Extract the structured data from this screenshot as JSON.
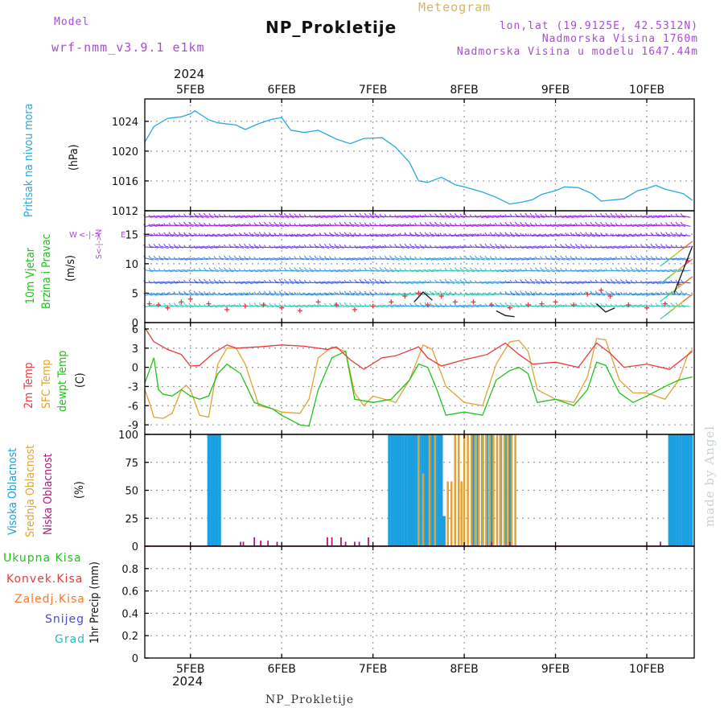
{
  "header": {
    "model_label": "Model",
    "model_name": "wrf-nmm_v3.9.1 e1km",
    "meteogram_label": "Meteogram",
    "station_title": "NP_Prokletije",
    "lonlat": "lon,lat (19.9125E, 42.5312N)",
    "elevation": "Nadmorska Visina 1760m",
    "model_elevation": "Nadmorska Visina u modelu 1647.44m",
    "top_year": "2024",
    "bottom_year": "2024",
    "footer": "NP_Prokletije",
    "credit": "made by Angel"
  },
  "colors": {
    "pressure": "#2aa7e0",
    "temp2m": "#e8393b",
    "sfctemp": "#e3a233",
    "dewpt": "#21c21a",
    "high_cloud": "#1aa0e0",
    "mid_cloud": "#e3a233",
    "low_cloud": "#b0177e",
    "purple": "#a84bd8"
  },
  "panel_labels": {
    "pressure": [
      "Pritisak na nivou mora",
      "(hPa)"
    ],
    "wind": [
      "10m Vjetar",
      "Brzina i Pravac",
      "(m/s)"
    ],
    "wind_compass": [
      "W",
      "<-|->",
      "E",
      "S<-|->N"
    ],
    "temp": [
      "2m Temp",
      "SFC Temp",
      "dewpt Temp",
      "(C)"
    ],
    "cloud": [
      "Visoka Oblacnost",
      "Srednja Oblacnost",
      "Niska Oblacnost",
      "(%)"
    ],
    "precip": [
      "Ukupna Kisa",
      "Konvek.Kisa",
      "Zaledj.Kisa",
      "Snijeg",
      "Grad",
      "1hr Precip (mm)"
    ]
  },
  "chart_data": [
    {
      "type": "line",
      "name": "Pritisak na nivou mora",
      "days": [
        "5FEB",
        "6FEB",
        "7FEB",
        "8FEB",
        "9FEB",
        "10FEB"
      ],
      "ylim": [
        1012,
        1027
      ],
      "yticks": [
        "1024",
        "1020",
        "1016",
        "1012"
      ],
      "series": [
        {
          "name": "Pritisak na nivou mora",
          "x": [
            4.5,
            4.6,
            4.75,
            4.9,
            5.0,
            5.05,
            5.1,
            5.2,
            5.3,
            5.5,
            5.6,
            5.75,
            5.9,
            6.0,
            6.1,
            6.25,
            6.4,
            6.6,
            6.75,
            6.9,
            7.1,
            7.25,
            7.4,
            7.5,
            7.6,
            7.75,
            7.9,
            8.0,
            8.2,
            8.35,
            8.5,
            8.65,
            8.75,
            8.85,
            9.0,
            9.1,
            9.25,
            9.4,
            9.5,
            9.75,
            9.9,
            10.0,
            10.1,
            10.2,
            10.4,
            10.5
          ],
          "values": [
            1021.2,
            1023.3,
            1024.4,
            1024.6,
            1025.0,
            1025.4,
            1025.0,
            1024.2,
            1023.8,
            1023.5,
            1022.9,
            1023.7,
            1024.3,
            1024.5,
            1022.8,
            1022.5,
            1022.8,
            1021.6,
            1021.0,
            1021.7,
            1021.8,
            1020.5,
            1018.5,
            1016.0,
            1015.8,
            1016.5,
            1015.5,
            1015.2,
            1014.5,
            1013.8,
            1012.9,
            1013.2,
            1013.5,
            1014.2,
            1014.7,
            1015.2,
            1015.1,
            1014.3,
            1013.3,
            1013.6,
            1014.7,
            1015.0,
            1015.4,
            1014.9,
            1014.3,
            1013.4
          ]
        }
      ]
    },
    {
      "type": "scatter",
      "name": "10m Vjetar Brzina i Pravac",
      "days": [
        "5FEB",
        "6FEB",
        "7FEB",
        "8FEB",
        "9FEB",
        "10FEB"
      ],
      "ylim": [
        0,
        19
      ],
      "yticks": [
        "15",
        "10",
        "5",
        "0"
      ],
      "series": [
        {
          "name": "Brzina (+)",
          "x": [
            4.55,
            4.65,
            4.75,
            4.9,
            5.0,
            5.2,
            5.4,
            5.6,
            5.8,
            6.0,
            6.2,
            6.4,
            6.6,
            6.8,
            7.0,
            7.2,
            7.35,
            7.5,
            7.6,
            7.75,
            7.9,
            8.1,
            8.3,
            8.5,
            8.7,
            8.85,
            9.0,
            9.2,
            9.35,
            9.5,
            9.6,
            9.8,
            10.0,
            10.2,
            10.35,
            10.45
          ],
          "values": [
            3.2,
            3.0,
            2.5,
            3.5,
            4.0,
            3.2,
            2.2,
            2.8,
            3.0,
            2.5,
            2.0,
            3.5,
            3.0,
            2.2,
            2.8,
            3.5,
            4.5,
            5.0,
            3.0,
            4.5,
            3.5,
            3.5,
            3.0,
            2.5,
            3.0,
            3.2,
            3.5,
            3.0,
            4.8,
            5.5,
            4.5,
            3.0,
            2.5,
            3.2,
            6.5,
            10.5
          ]
        },
        {
          "name": "Brzina (line)",
          "x": [
            7.45,
            7.55,
            7.65,
            8.35,
            8.45,
            8.55,
            9.45,
            9.55,
            9.65,
            10.3,
            10.4,
            10.5
          ],
          "values": [
            3.5,
            5.2,
            3.8,
            2.0,
            1.2,
            1.0,
            3.2,
            1.8,
            2.5,
            5.0,
            9.0,
            13.0
          ]
        }
      ]
    },
    {
      "type": "line",
      "name": "Temp",
      "days": [
        "5FEB",
        "6FEB",
        "7FEB",
        "8FEB",
        "9FEB",
        "10FEB"
      ],
      "ylim": [
        -10.5,
        7
      ],
      "yticks": [
        "6",
        "3",
        "0",
        "-3",
        "-6",
        "-9"
      ],
      "series": [
        {
          "name": "2m Temp",
          "x": [
            4.5,
            4.6,
            4.75,
            4.9,
            5.0,
            5.1,
            5.25,
            5.4,
            5.5,
            5.75,
            6.0,
            6.25,
            6.5,
            6.6,
            6.75,
            6.9,
            7.1,
            7.25,
            7.5,
            7.6,
            7.75,
            8.0,
            8.25,
            8.45,
            8.6,
            8.75,
            9.0,
            9.25,
            9.45,
            9.6,
            9.75,
            10.0,
            10.25,
            10.5
          ],
          "values": [
            6.2,
            4.0,
            2.8,
            2.0,
            0.2,
            0.3,
            2.2,
            3.5,
            3.0,
            3.2,
            3.5,
            3.3,
            2.8,
            3.2,
            1.2,
            -0.3,
            1.5,
            1.8,
            3.2,
            1.5,
            0.2,
            1.2,
            2.0,
            3.8,
            2.0,
            0.5,
            0.8,
            0.0,
            3.8,
            2.2,
            0.0,
            0.5,
            -0.3,
            2.5
          ]
        },
        {
          "name": "SFC Temp",
          "x": [
            4.5,
            4.55,
            4.6,
            4.7,
            4.8,
            4.9,
            4.95,
            5.0,
            5.1,
            5.2,
            5.3,
            5.4,
            5.5,
            5.6,
            5.75,
            5.9,
            6.0,
            6.2,
            6.3,
            6.4,
            6.55,
            6.7,
            6.8,
            6.9,
            7.0,
            7.25,
            7.4,
            7.55,
            7.65,
            7.8,
            8.0,
            8.2,
            8.35,
            8.5,
            8.6,
            8.7,
            8.8,
            9.0,
            9.2,
            9.35,
            9.45,
            9.55,
            9.7,
            9.85,
            10.0,
            10.2,
            10.35,
            10.45,
            10.5
          ],
          "values": [
            -3.5,
            -5.5,
            -7.8,
            -8.0,
            -7.2,
            -3.5,
            -2.8,
            -3.5,
            -7.5,
            -7.8,
            0.5,
            3.0,
            3.0,
            0.5,
            -6.0,
            -6.5,
            -7.0,
            -7.2,
            -5.0,
            1.5,
            3.2,
            2.5,
            -4.0,
            -6.0,
            -4.5,
            -5.5,
            -2.0,
            3.5,
            2.8,
            -3.0,
            -5.5,
            -6.0,
            0.5,
            4.0,
            4.2,
            2.5,
            -3.5,
            -5.0,
            -5.5,
            -1.5,
            4.5,
            4.3,
            -2.0,
            -4.0,
            -4.0,
            -5.0,
            -2.0,
            2.0,
            2.8
          ]
        },
        {
          "name": "dewpt Temp",
          "x": [
            4.5,
            4.6,
            4.65,
            4.7,
            4.8,
            4.9,
            5.0,
            5.1,
            5.2,
            5.3,
            5.4,
            5.55,
            5.7,
            5.9,
            6.0,
            6.2,
            6.3,
            6.4,
            6.55,
            6.7,
            6.8,
            7.0,
            7.2,
            7.4,
            7.5,
            7.6,
            7.7,
            7.8,
            8.0,
            8.2,
            8.35,
            8.5,
            8.6,
            8.7,
            8.8,
            9.0,
            9.2,
            9.35,
            9.45,
            9.55,
            9.7,
            9.85,
            10.0,
            10.2,
            10.35,
            10.5
          ],
          "values": [
            -2.5,
            1.5,
            -3.5,
            -4.2,
            -4.5,
            -3.5,
            -4.5,
            -5.0,
            -4.5,
            -1.0,
            0.5,
            -1.0,
            -5.5,
            -6.5,
            -7.5,
            -9.0,
            -9.2,
            -3.5,
            1.5,
            2.5,
            -5.0,
            -5.5,
            -5.0,
            -2.0,
            0.5,
            0.0,
            -3.5,
            -7.5,
            -7.0,
            -7.5,
            -2.0,
            -0.5,
            0.0,
            -1.0,
            -5.5,
            -5.0,
            -6.0,
            -3.5,
            0.8,
            0.3,
            -4.0,
            -5.5,
            -4.5,
            -3.0,
            -2.0,
            -1.5
          ]
        }
      ]
    },
    {
      "type": "bar",
      "name": "Oblacnost",
      "days": [
        "5FEB",
        "6FEB",
        "7FEB",
        "8FEB",
        "9FEB",
        "10FEB"
      ],
      "ylim": [
        0,
        100
      ],
      "yticks": [
        "100",
        "75",
        "50",
        "25",
        "0"
      ],
      "series": [
        {
          "name": "Visoka Oblacnost",
          "x": [
            5.2,
            5.23,
            5.26,
            5.29,
            5.32,
            7.18,
            7.21,
            7.24,
            7.27,
            7.3,
            7.33,
            7.36,
            7.39,
            7.42,
            7.45,
            7.48,
            7.51,
            7.54,
            7.57,
            7.6,
            7.63,
            7.66,
            7.69,
            7.72,
            7.75,
            7.78,
            8.1,
            8.15,
            8.2,
            8.25,
            8.3,
            8.4,
            8.45,
            8.5,
            10.25,
            10.28,
            10.31,
            10.34,
            10.37,
            10.4,
            10.43,
            10.46,
            10.49
          ],
          "values": [
            100,
            100,
            100,
            100,
            100,
            100,
            100,
            100,
            100,
            100,
            100,
            100,
            100,
            100,
            100,
            100,
            100,
            100,
            100,
            100,
            100,
            100,
            100,
            100,
            100,
            27,
            100,
            100,
            100,
            100,
            100,
            100,
            100,
            100,
            100,
            100,
            100,
            100,
            100,
            100,
            100,
            100,
            100
          ]
        },
        {
          "name": "Srednja Oblacnost",
          "x": [
            7.5,
            7.55,
            7.62,
            7.68,
            7.82,
            7.86,
            7.9,
            7.94,
            7.97,
            8.0,
            8.04,
            8.08,
            8.12,
            8.16,
            8.2,
            8.24,
            8.28,
            8.32,
            8.36,
            8.4,
            8.44,
            8.48,
            8.52,
            8.56
          ],
          "values": [
            100,
            65,
            100,
            100,
            58,
            58,
            100,
            100,
            58,
            100,
            100,
            100,
            100,
            100,
            100,
            100,
            100,
            100,
            100,
            100,
            100,
            100,
            100,
            100
          ]
        },
        {
          "name": "Niska Oblacnost",
          "x": [
            5.55,
            5.58,
            5.7,
            5.77,
            5.85,
            5.95,
            6.5,
            6.55,
            6.65,
            6.7,
            6.8,
            6.85,
            6.95,
            8.3,
            8.5,
            10.15
          ],
          "values": [
            4,
            4,
            8,
            5,
            5,
            4,
            8,
            8,
            8,
            4,
            4,
            4,
            8,
            4,
            4,
            4
          ]
        }
      ]
    },
    {
      "type": "line",
      "name": "1hr Precip",
      "days": [
        "5FEB",
        "6FEB",
        "7FEB",
        "8FEB",
        "9FEB",
        "10FEB"
      ],
      "ylim": [
        0,
        1
      ],
      "yticks": [
        "0.8",
        "0.6",
        "0.4",
        "0.2",
        "0"
      ],
      "series": []
    }
  ]
}
